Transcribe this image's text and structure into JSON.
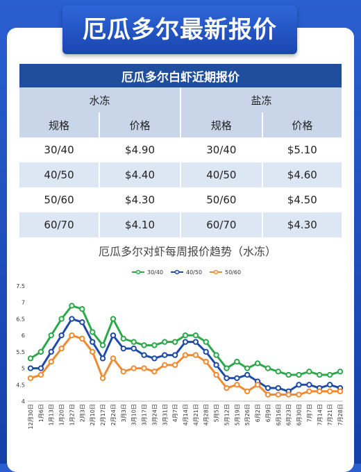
{
  "header": {
    "title": "厄瓜多尔最新报价"
  },
  "table": {
    "title": "厄瓜多尔白虾近期报价",
    "groups": [
      "水冻",
      "盐冻"
    ],
    "columns": [
      "规格",
      "价格",
      "规格",
      "价格"
    ],
    "rows": [
      [
        "30/40",
        "$4.90",
        "30/40",
        "$5.10"
      ],
      [
        "40/50",
        "$4.40",
        "40/50",
        "$4.60"
      ],
      [
        "50/60",
        "$4.30",
        "50/60",
        "$4.50"
      ],
      [
        "60/70",
        "$4.10",
        "60/70",
        "$4.30"
      ]
    ]
  },
  "chart_data": {
    "type": "line",
    "title": "厄瓜多尔对虾每周报价趋势（水冻）",
    "x": [
      "12月30日",
      "1月6日",
      "1月13日",
      "1月20日",
      "1月27日",
      "2月3日",
      "2月10日",
      "2月17日",
      "2月24日",
      "3月3日",
      "3月10日",
      "3月17日",
      "3月24日",
      "3月31日",
      "4月7日",
      "4月14日",
      "4月21日",
      "4月28日",
      "5月5日",
      "5月12日",
      "5月19日",
      "5月26日",
      "6月2日",
      "6月9日",
      "6月16日",
      "6月23日",
      "6月30日",
      "7月7日",
      "7月14日",
      "7月21日",
      "7月28日"
    ],
    "series": [
      {
        "name": "30/40",
        "color": "#2aa84a",
        "values": [
          5.3,
          5.5,
          6.0,
          6.5,
          6.9,
          6.8,
          6.1,
          5.7,
          6.5,
          5.9,
          5.8,
          5.7,
          5.7,
          5.8,
          5.8,
          6.0,
          6.0,
          5.8,
          5.4,
          5.0,
          5.2,
          5.0,
          5.15,
          5.0,
          4.9,
          4.8,
          4.8,
          4.9,
          4.8,
          4.8,
          4.9
        ]
      },
      {
        "name": "40/50",
        "color": "#1f4aa8",
        "values": [
          5.0,
          5.0,
          5.5,
          6.0,
          6.5,
          6.4,
          5.8,
          5.3,
          6.0,
          5.6,
          5.6,
          5.4,
          5.3,
          5.4,
          5.4,
          5.8,
          5.8,
          5.5,
          5.1,
          4.7,
          4.7,
          4.8,
          4.6,
          4.4,
          4.4,
          4.3,
          4.5,
          4.5,
          4.4,
          4.5,
          4.4
        ]
      },
      {
        "name": "50/60",
        "color": "#f08a30",
        "values": [
          4.7,
          4.8,
          5.2,
          5.6,
          6.0,
          5.9,
          5.5,
          4.7,
          5.3,
          4.9,
          5.0,
          5.0,
          4.9,
          5.1,
          5.1,
          5.4,
          5.4,
          5.2,
          4.8,
          4.4,
          4.5,
          4.3,
          4.5,
          4.2,
          4.2,
          4.2,
          4.2,
          4.3,
          4.3,
          4.3,
          4.3
        ]
      }
    ],
    "ylim": [
      4,
      7.5
    ],
    "yticks": [
      4,
      4.5,
      5,
      5.5,
      6,
      6.5,
      7,
      7.5
    ],
    "grid": false,
    "legend": "top"
  }
}
